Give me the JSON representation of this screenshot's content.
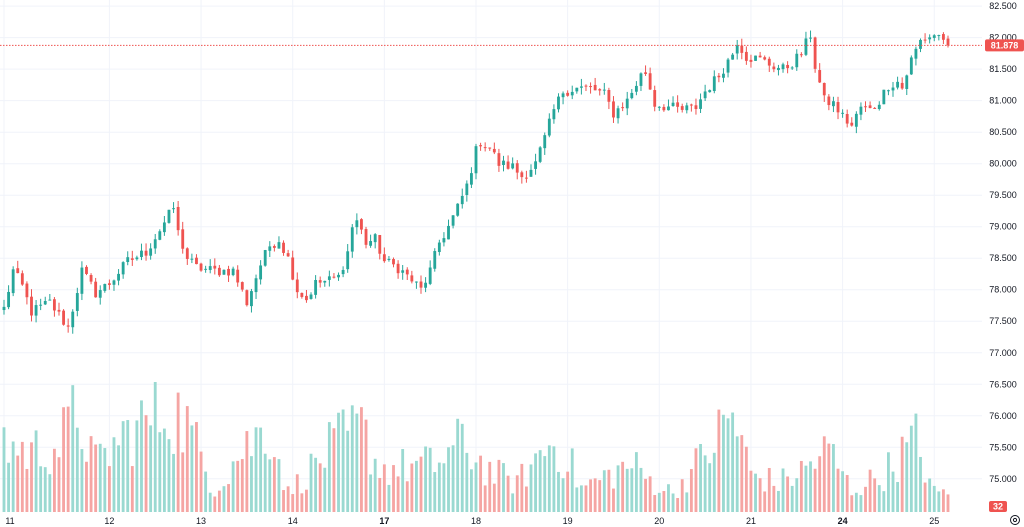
{
  "chart_data": {
    "type": "candlestick",
    "title": "",
    "colors": {
      "up": "#26a69a",
      "down": "#ef5350",
      "up_volume": "#9ad9d1",
      "down_volume": "#f5a5a3",
      "grid": "#f0f3fa",
      "price_line": "#ef5350"
    },
    "y_axis": {
      "range": [
        74.6,
        82.55
      ],
      "ticks": [
        "75.000",
        "75.500",
        "76.000",
        "76.500",
        "77.000",
        "77.500",
        "78.000",
        "78.500",
        "79.000",
        "79.500",
        "80.000",
        "80.500",
        "81.000",
        "81.500",
        "82.000",
        "82.500"
      ]
    },
    "x_axis": {
      "labels": [
        {
          "label": "11",
          "index": 0,
          "bold": false
        },
        {
          "label": "12",
          "index": 23,
          "bold": false
        },
        {
          "label": "13",
          "index": 43,
          "bold": false
        },
        {
          "label": "14",
          "index": 63,
          "bold": false
        },
        {
          "label": "17",
          "index": 83,
          "bold": true
        },
        {
          "label": "18",
          "index": 103,
          "bold": false
        },
        {
          "label": "19",
          "index": 123,
          "bold": false
        },
        {
          "label": "20",
          "index": 143,
          "bold": false
        },
        {
          "label": "21",
          "index": 163,
          "bold": false
        },
        {
          "label": "24",
          "index": 183,
          "bold": true
        },
        {
          "label": "25",
          "index": 203,
          "bold": false
        }
      ]
    },
    "current_price": {
      "value": 81.878,
      "label": "81.878"
    },
    "volume_badge": {
      "value": 32,
      "label": "32"
    },
    "anchors": [
      [
        0,
        77.7
      ],
      [
        2,
        78.3
      ],
      [
        4,
        78.05
      ],
      [
        6,
        77.65
      ],
      [
        10,
        77.8
      ],
      [
        14,
        77.4
      ],
      [
        17,
        78.3
      ],
      [
        20,
        77.95
      ],
      [
        23,
        78.1
      ],
      [
        27,
        78.45
      ],
      [
        31,
        78.6
      ],
      [
        34,
        78.95
      ],
      [
        37,
        79.3
      ],
      [
        38,
        78.9
      ],
      [
        40,
        78.5
      ],
      [
        42,
        78.35
      ],
      [
        46,
        78.3
      ],
      [
        50,
        78.3
      ],
      [
        53,
        77.8
      ],
      [
        56,
        78.4
      ],
      [
        58,
        78.7
      ],
      [
        60,
        78.8
      ],
      [
        62,
        78.5
      ],
      [
        64,
        78.0
      ],
      [
        66,
        77.85
      ],
      [
        68,
        78.1
      ],
      [
        71,
        78.15
      ],
      [
        73,
        78.2
      ],
      [
        75,
        78.6
      ],
      [
        76,
        79.0
      ],
      [
        77,
        79.1
      ],
      [
        79,
        78.75
      ],
      [
        81,
        78.8
      ],
      [
        83,
        78.45
      ],
      [
        86,
        78.35
      ],
      [
        89,
        78.15
      ],
      [
        91,
        78.0
      ],
      [
        93,
        78.3
      ],
      [
        95,
        78.75
      ],
      [
        97,
        79.0
      ],
      [
        99,
        79.3
      ],
      [
        101,
        79.65
      ],
      [
        103,
        80.2
      ],
      [
        104,
        80.35
      ],
      [
        106,
        80.25
      ],
      [
        108,
        80.0
      ],
      [
        111,
        79.95
      ],
      [
        113,
        79.8
      ],
      [
        116,
        80.0
      ],
      [
        118,
        80.4
      ],
      [
        120,
        80.85
      ],
      [
        122,
        81.15
      ],
      [
        125,
        81.2
      ],
      [
        128,
        81.2
      ],
      [
        131,
        81.1
      ],
      [
        133,
        80.8
      ],
      [
        136,
        81.0
      ],
      [
        139,
        81.4
      ],
      [
        140,
        81.45
      ],
      [
        142,
        80.95
      ],
      [
        145,
        80.9
      ],
      [
        148,
        80.85
      ],
      [
        151,
        80.9
      ],
      [
        153,
        81.15
      ],
      [
        156,
        81.4
      ],
      [
        159,
        81.75
      ],
      [
        160,
        81.95
      ],
      [
        162,
        81.7
      ],
      [
        165,
        81.65
      ],
      [
        168,
        81.55
      ],
      [
        170,
        81.5
      ],
      [
        172,
        81.6
      ],
      [
        174,
        81.75
      ],
      [
        176,
        82.05
      ],
      [
        177,
        81.55
      ],
      [
        179,
        81.0
      ],
      [
        181,
        80.95
      ],
      [
        183,
        80.75
      ],
      [
        185,
        80.6
      ],
      [
        187,
        80.9
      ],
      [
        189,
        80.85
      ],
      [
        191,
        81.0
      ],
      [
        193,
        81.25
      ],
      [
        195,
        81.3
      ],
      [
        196,
        81.2
      ],
      [
        198,
        81.65
      ],
      [
        200,
        81.95
      ],
      [
        203,
        82.05
      ],
      [
        205,
        82.0
      ],
      [
        206,
        81.878
      ]
    ],
    "volume_peaks": [
      [
        0,
        1450
      ],
      [
        5,
        1250
      ],
      [
        12,
        1400
      ],
      [
        16,
        2100
      ],
      [
        20,
        1000
      ],
      [
        27,
        1650
      ],
      [
        36,
        2200
      ],
      [
        40,
        1800
      ],
      [
        46,
        500
      ],
      [
        52,
        1300
      ],
      [
        58,
        1800
      ],
      [
        62,
        400
      ],
      [
        72,
        1400
      ],
      [
        78,
        1750
      ],
      [
        82,
        900
      ],
      [
        94,
        1000
      ],
      [
        100,
        1450
      ],
      [
        106,
        850
      ],
      [
        112,
        600
      ],
      [
        119,
        1450
      ],
      [
        123,
        1150
      ],
      [
        126,
        500
      ],
      [
        137,
        1000
      ],
      [
        141,
        650
      ],
      [
        146,
        400
      ],
      [
        153,
        1200
      ],
      [
        159,
        2050
      ],
      [
        163,
        800
      ],
      [
        169,
        600
      ],
      [
        174,
        850
      ],
      [
        180,
        1300
      ],
      [
        185,
        450
      ],
      [
        192,
        800
      ],
      [
        199,
        1500
      ],
      [
        203,
        400
      ],
      [
        206,
        400
      ]
    ],
    "candle_count": 207
  }
}
